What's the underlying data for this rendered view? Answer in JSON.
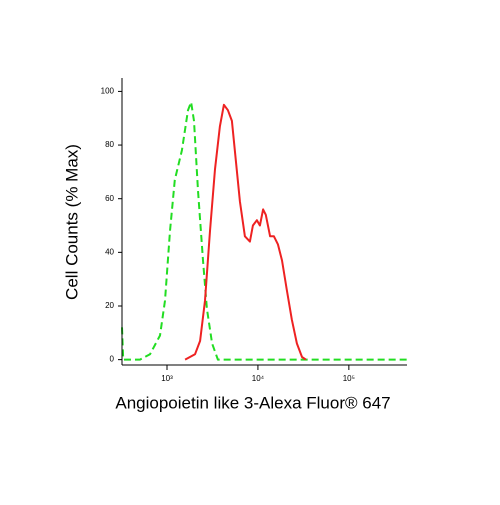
{
  "chart_data": {
    "type": "line",
    "x_label": "Angiopoietin like 3-Alexa Fluor® 647",
    "y_label": "Cell Counts (% Max)",
    "x_scale": "log",
    "xlim": [
      320,
      436000
    ],
    "ylim": [
      -2,
      105
    ],
    "xticks": [
      {
        "value": 1000,
        "label": "10³"
      },
      {
        "value": 10000,
        "label": "10⁴"
      },
      {
        "value": 100000,
        "label": "10⁵"
      }
    ],
    "yticks": [
      0,
      20,
      40,
      60,
      80,
      100
    ],
    "series": [
      {
        "color": "#22dd22",
        "dash": true,
        "x": [
          320,
          330,
          505,
          650,
          838,
          950,
          1080,
          1220,
          1460,
          1700,
          1840,
          1980,
          2190,
          2490,
          2750,
          3130,
          3630,
          436000
        ],
        "values": [
          12,
          0,
          0,
          2,
          9,
          22,
          48,
          67,
          78,
          93,
          96,
          89,
          63,
          37,
          19,
          6,
          0,
          0
        ]
      },
      {
        "color": "#ee2222",
        "dash": false,
        "x": [
          1580,
          2030,
          2310,
          2620,
          2970,
          3370,
          3820,
          4230,
          4680,
          5180,
          5730,
          6340,
          7190,
          8170,
          8810,
          9750,
          10500,
          11400,
          12200,
          13600,
          15000,
          16600,
          18400,
          20800,
          23600,
          26800,
          30500,
          33700
        ],
        "values": [
          0,
          2,
          7,
          22,
          48,
          71,
          87,
          95,
          93,
          89,
          74,
          59,
          46,
          44,
          50,
          52,
          50,
          56,
          54,
          46,
          46,
          43,
          37,
          26,
          15,
          6,
          1,
          0
        ]
      }
    ]
  }
}
